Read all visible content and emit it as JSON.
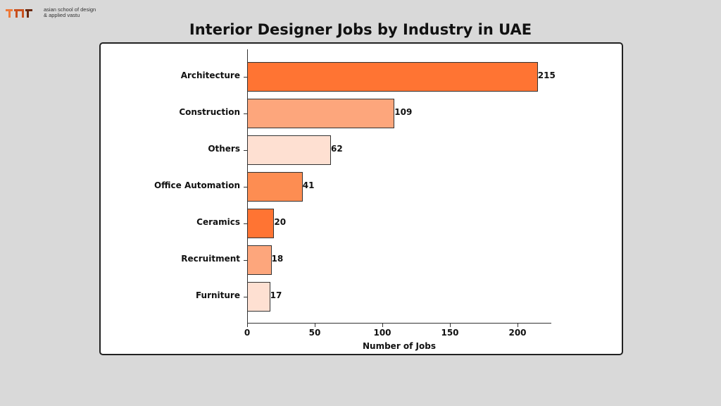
{
  "logo": {
    "line1": "asian school of design",
    "line2": "& applied vastu"
  },
  "chart_data": {
    "type": "bar",
    "orientation": "horizontal",
    "title": "Interior Designer Jobs by Industry in UAE",
    "xlabel": "Number of Jobs",
    "ylabel": "",
    "categories": [
      "Architecture",
      "Construction",
      "Others",
      "Office Automation",
      "Ceramics",
      "Recruitment",
      "Furniture"
    ],
    "values": [
      215,
      109,
      62,
      41,
      20,
      18,
      17
    ],
    "colors": [
      "#ff7433",
      "#fda67c",
      "#fee0d2",
      "#fd8d52",
      "#ff7433",
      "#fda67c",
      "#fee0d2"
    ],
    "xticks": [
      0,
      50,
      100,
      150,
      200
    ],
    "xlim": [
      0,
      225
    ],
    "data_labels": true,
    "grid": false
  }
}
